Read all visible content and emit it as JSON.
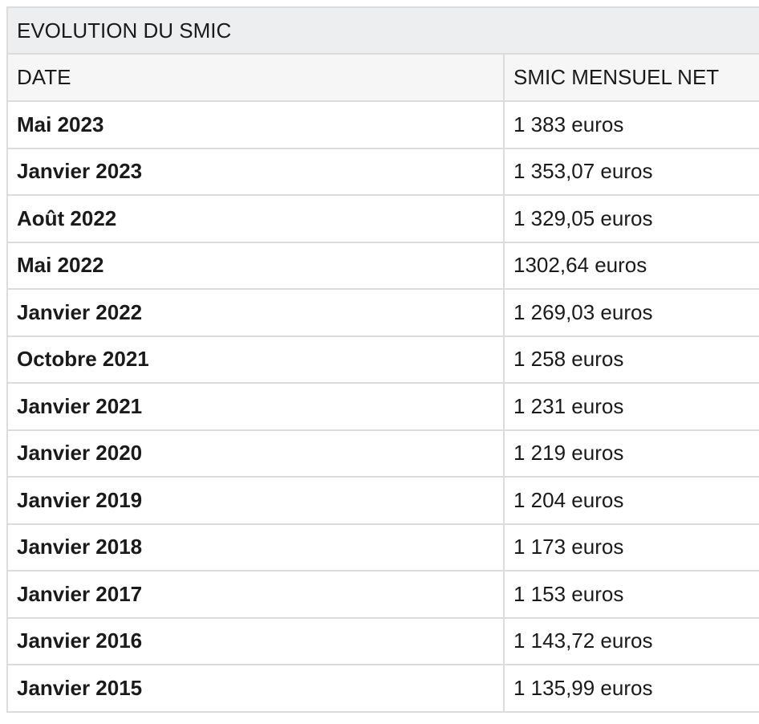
{
  "table": {
    "title": "EVOLUTION DU SMIC",
    "header": [
      "DATE",
      "SMIC MENSUEL NET"
    ],
    "rows": [
      [
        "Mai 2023",
        "1 383 euros"
      ],
      [
        "Janvier 2023",
        "1 353,07 euros"
      ],
      [
        "Août 2022",
        "1 329,05 euros"
      ],
      [
        "Mai 2022",
        "1302,64 euros"
      ],
      [
        "Janvier 2022",
        "1 269,03 euros"
      ],
      [
        "Octobre 2021",
        "1 258 euros"
      ],
      [
        "Janvier 2021",
        "1 231 euros"
      ],
      [
        "Janvier 2020",
        "1 219 euros"
      ],
      [
        "Janvier 2019",
        "1 204 euros"
      ],
      [
        "Janvier 2018",
        "1 173 euros"
      ],
      [
        "Janvier 2017",
        "1 153 euros"
      ],
      [
        "Janvier 2016",
        "1 143,72 euros"
      ],
      [
        "Janvier 2015",
        "1 135,99 euros"
      ]
    ]
  }
}
